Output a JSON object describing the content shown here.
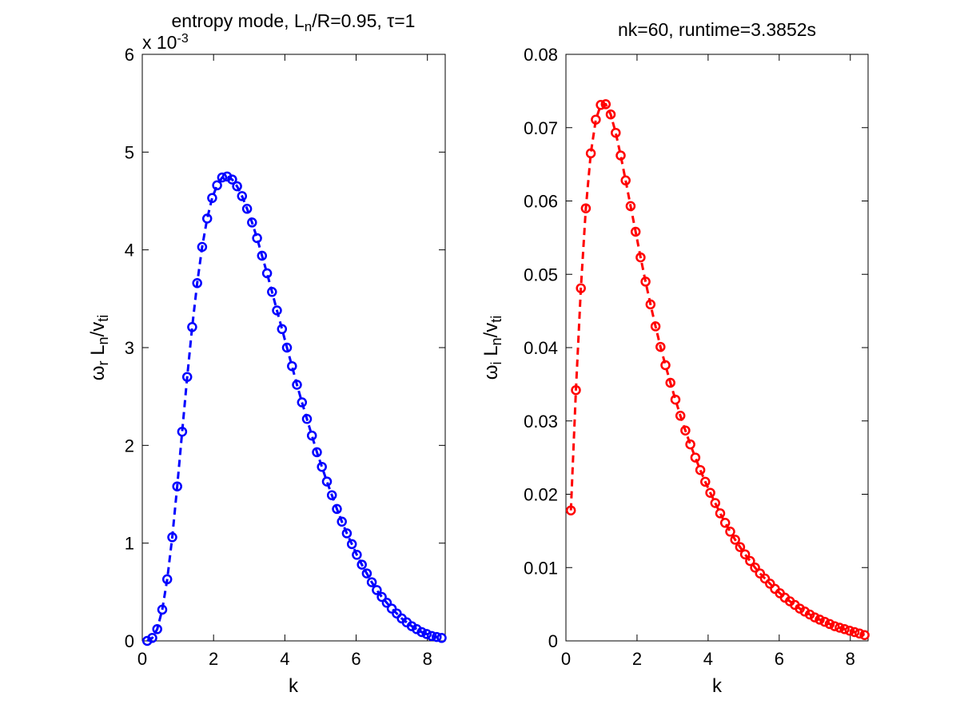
{
  "chart_data": [
    {
      "type": "line",
      "title": "entropy mode, L",
      "title_sub": "n",
      "title_tail": "/R=0.95, τ=1",
      "xlabel": "k",
      "ylabel": {
        "base": "ω",
        "sub1": "r",
        "mid": " L",
        "sub2": "n",
        "tail": "/v",
        "sub3": "ti"
      },
      "ylabel_text": "ωr Ln/vti",
      "exponent_label": "x 10",
      "exponent_power": "-3",
      "xlim": [
        0,
        8.5
      ],
      "ylim": [
        0,
        6
      ],
      "xticks": [
        "0",
        "2",
        "4",
        "6",
        "8"
      ],
      "yticks": [
        "0",
        "1",
        "2",
        "3",
        "4",
        "5",
        "6"
      ],
      "color": "#0000ff",
      "line_style": "dashed",
      "marker": "circle",
      "grid": false,
      "x": [
        0.14,
        0.28,
        0.42,
        0.56,
        0.7,
        0.84,
        0.98,
        1.12,
        1.26,
        1.4,
        1.54,
        1.68,
        1.82,
        1.96,
        2.1,
        2.24,
        2.38,
        2.52,
        2.66,
        2.8,
        2.94,
        3.08,
        3.22,
        3.36,
        3.5,
        3.64,
        3.78,
        3.92,
        4.06,
        4.2,
        4.34,
        4.48,
        4.62,
        4.76,
        4.9,
        5.04,
        5.18,
        5.32,
        5.46,
        5.6,
        5.74,
        5.88,
        6.02,
        6.16,
        6.3,
        6.44,
        6.58,
        6.72,
        6.86,
        7.0,
        7.14,
        7.28,
        7.42,
        7.56,
        7.7,
        7.84,
        7.98,
        8.12,
        8.26,
        8.4
      ],
      "y": [
        0.0,
        0.03,
        0.12,
        0.32,
        0.63,
        1.06,
        1.58,
        2.14,
        2.7,
        3.21,
        3.66,
        4.03,
        4.32,
        4.53,
        4.66,
        4.74,
        4.75,
        4.72,
        4.65,
        4.55,
        4.42,
        4.28,
        4.12,
        3.94,
        3.76,
        3.57,
        3.38,
        3.19,
        3.0,
        2.81,
        2.62,
        2.44,
        2.27,
        2.1,
        1.93,
        1.78,
        1.63,
        1.49,
        1.35,
        1.22,
        1.1,
        0.99,
        0.88,
        0.78,
        0.69,
        0.6,
        0.52,
        0.45,
        0.39,
        0.33,
        0.28,
        0.23,
        0.19,
        0.15,
        0.12,
        0.09,
        0.07,
        0.05,
        0.04,
        0.03
      ]
    },
    {
      "type": "line",
      "title": "nk=60, runtime=3.3852s",
      "xlabel": "k",
      "ylabel": {
        "base": "ω",
        "sub1": "i",
        "mid": " L",
        "sub2": "n",
        "tail": "/v",
        "sub3": "ti"
      },
      "ylabel_text": "ωi Ln/vti",
      "xlim": [
        0,
        8.5
      ],
      "ylim": [
        0,
        0.08
      ],
      "xticks": [
        "0",
        "2",
        "4",
        "6",
        "8"
      ],
      "yticks": [
        "0",
        "0.01",
        "0.02",
        "0.03",
        "0.04",
        "0.05",
        "0.06",
        "0.07",
        "0.08"
      ],
      "color": "#ff0000",
      "line_style": "dashed",
      "marker": "circle",
      "grid": false,
      "x": [
        0.14,
        0.28,
        0.42,
        0.56,
        0.7,
        0.84,
        0.98,
        1.12,
        1.26,
        1.4,
        1.54,
        1.68,
        1.82,
        1.96,
        2.1,
        2.24,
        2.38,
        2.52,
        2.66,
        2.8,
        2.94,
        3.08,
        3.22,
        3.36,
        3.5,
        3.64,
        3.78,
        3.92,
        4.06,
        4.2,
        4.34,
        4.48,
        4.62,
        4.76,
        4.9,
        5.04,
        5.18,
        5.32,
        5.46,
        5.6,
        5.74,
        5.88,
        6.02,
        6.16,
        6.3,
        6.44,
        6.58,
        6.72,
        6.86,
        7.0,
        7.14,
        7.28,
        7.42,
        7.56,
        7.7,
        7.84,
        7.98,
        8.12,
        8.26,
        8.4
      ],
      "y": [
        0.0178,
        0.0342,
        0.0481,
        0.059,
        0.0665,
        0.0711,
        0.0731,
        0.0732,
        0.0718,
        0.0693,
        0.0662,
        0.0628,
        0.0593,
        0.0558,
        0.0523,
        0.049,
        0.0459,
        0.0429,
        0.0401,
        0.0376,
        0.0352,
        0.0329,
        0.0307,
        0.0287,
        0.0268,
        0.025,
        0.0233,
        0.0217,
        0.0202,
        0.0188,
        0.0174,
        0.0161,
        0.0149,
        0.0138,
        0.0128,
        0.0118,
        0.0109,
        0.01,
        0.0092,
        0.0085,
        0.0078,
        0.0071,
        0.0065,
        0.0059,
        0.0054,
        0.0049,
        0.0044,
        0.004,
        0.0036,
        0.0032,
        0.0029,
        0.0026,
        0.0023,
        0.002,
        0.0018,
        0.0016,
        0.0014,
        0.0012,
        0.001,
        0.0008
      ]
    }
  ]
}
